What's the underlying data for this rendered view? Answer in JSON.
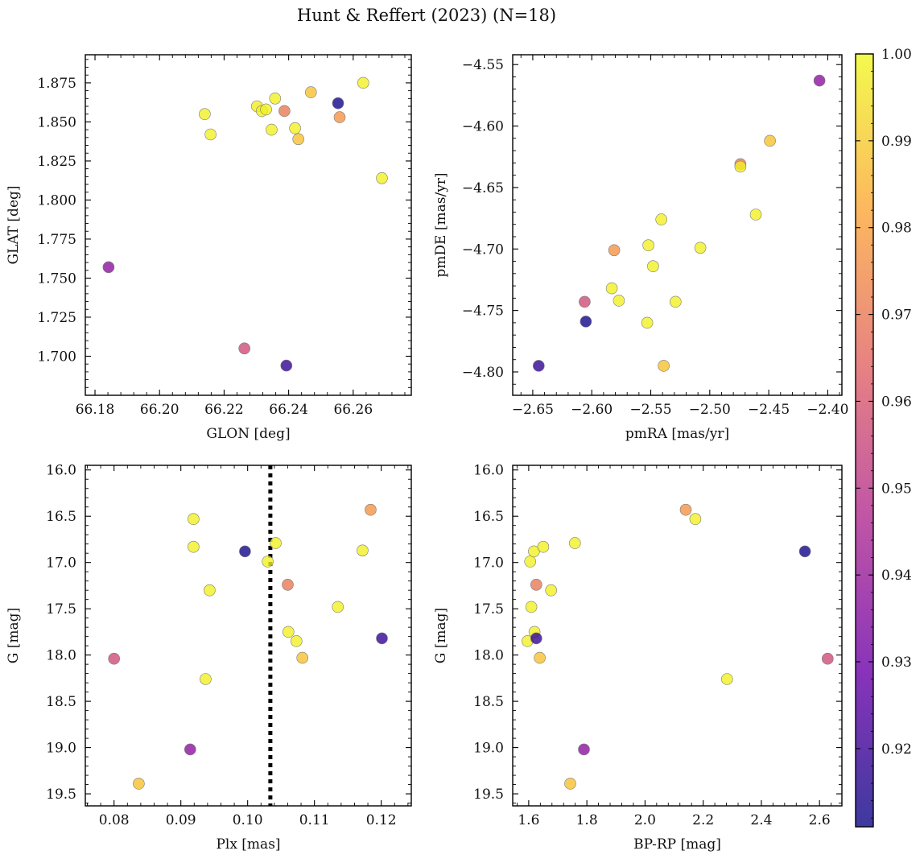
{
  "title": "Hunt & Reffert (2023) (N=18)",
  "colormap": {
    "name": "plasma",
    "stops": [
      "#0d0887",
      "#6a00a8",
      "#b12a90",
      "#e16462",
      "#fca636",
      "#f0f921"
    ],
    "alpha": 0.8,
    "vmin": 0.911,
    "vmax": 1.0,
    "ticks": [
      0.92,
      0.93,
      0.94,
      0.95,
      0.96,
      0.97,
      0.98,
      0.99,
      1.0
    ],
    "tick_labels": [
      "0.92",
      "0.93",
      "0.94",
      "0.95",
      "0.96",
      "0.97",
      "0.98",
      "0.99",
      "1.00"
    ]
  },
  "chart_data": [
    {
      "type": "scatter",
      "id": "lonlat",
      "xlabel": "GLON [deg]",
      "ylabel": "GLAT [deg]",
      "xlim": [
        66.177,
        66.278
      ],
      "ylim": [
        1.675,
        1.893
      ],
      "xticks": [
        66.18,
        66.2,
        66.22,
        66.24,
        66.26
      ],
      "xtick_labels": [
        "66.18",
        "66.20",
        "66.22",
        "66.24",
        "66.26"
      ],
      "yticks": [
        1.7,
        1.725,
        1.75,
        1.775,
        1.8,
        1.825,
        1.85,
        1.875
      ],
      "ytick_labels": [
        "1.700",
        "1.725",
        "1.750",
        "1.775",
        "1.800",
        "1.825",
        "1.850",
        "1.875"
      ],
      "x": [
        66.1842,
        66.214,
        66.2158,
        66.2263,
        66.2302,
        66.2317,
        66.233,
        66.2347,
        66.2358,
        66.2387,
        66.2393,
        66.242,
        66.243,
        66.2469,
        66.2553,
        66.2558,
        66.2631,
        66.2689
      ],
      "y": [
        1.757,
        1.855,
        1.842,
        1.705,
        1.86,
        1.857,
        1.858,
        1.845,
        1.865,
        1.857,
        1.694,
        1.846,
        1.839,
        1.869,
        1.862,
        1.853,
        1.875,
        1.814
      ],
      "c": [
        0.937,
        0.998,
        0.998,
        0.957,
        0.997,
        0.998,
        0.998,
        0.998,
        0.998,
        0.97,
        0.918,
        0.998,
        0.988,
        0.988,
        0.912,
        0.977,
        0.998,
        0.998
      ]
    },
    {
      "type": "scatter",
      "id": "pm",
      "xlabel": "pmRA [mas/yr]",
      "ylabel": "pmDE [mas/yr]",
      "xlim": [
        -2.667,
        -2.388
      ],
      "ylim": [
        -4.819,
        -4.542
      ],
      "xticks": [
        -2.65,
        -2.6,
        -2.55,
        -2.5,
        -2.45,
        -2.4
      ],
      "xtick_labels": [
        "−2.65",
        "−2.60",
        "−2.55",
        "−2.50",
        "−2.45",
        "−2.40"
      ],
      "yticks": [
        -4.8,
        -4.75,
        -4.7,
        -4.65,
        -4.6,
        -4.55
      ],
      "ytick_labels": [
        "−4.80",
        "−4.75",
        "−4.70",
        "−4.65",
        "−4.60",
        "−4.55"
      ],
      "x": [
        -2.645,
        -2.605,
        -2.606,
        -2.583,
        -2.581,
        -2.577,
        -2.553,
        -2.552,
        -2.548,
        -2.541,
        -2.539,
        -2.529,
        -2.508,
        -2.474,
        -2.474,
        -2.461,
        -2.449,
        -2.407
      ],
      "y": [
        -4.795,
        -4.759,
        -4.743,
        -4.732,
        -4.701,
        -4.742,
        -4.76,
        -4.697,
        -4.714,
        -4.676,
        -4.795,
        -4.743,
        -4.699,
        -4.631,
        -4.633,
        -4.672,
        -4.612,
        -4.563
      ],
      "c": [
        0.918,
        0.912,
        0.957,
        0.998,
        0.977,
        0.998,
        0.998,
        0.998,
        0.998,
        0.998,
        0.988,
        0.998,
        0.998,
        0.97,
        0.998,
        0.998,
        0.988,
        0.937
      ]
    },
    {
      "type": "scatter",
      "id": "plxg",
      "xlabel": "Plx [mas]",
      "ylabel": "G [mag]",
      "xlim": [
        0.0757,
        0.1245
      ],
      "ylim": [
        19.63,
        15.95
      ],
      "xticks": [
        0.08,
        0.09,
        0.1,
        0.11,
        0.12
      ],
      "xtick_labels": [
        "0.08",
        "0.09",
        "0.10",
        "0.11",
        "0.12"
      ],
      "yticks": [
        16.0,
        16.5,
        17.0,
        17.5,
        18.0,
        18.5,
        19.0,
        19.5
      ],
      "ytick_labels": [
        "16.0",
        "16.5",
        "17.0",
        "17.5",
        "18.0",
        "18.5",
        "19.0",
        "19.5"
      ],
      "vline": 0.1034,
      "x": [
        0.08,
        0.0837,
        0.0914,
        0.0919,
        0.0919,
        0.0937,
        0.0943,
        0.0996,
        0.103,
        0.1042,
        0.106,
        0.1061,
        0.1073,
        0.1082,
        0.1135,
        0.1172,
        0.1184,
        0.1201
      ],
      "y": [
        18.04,
        19.39,
        19.02,
        16.53,
        16.83,
        18.26,
        17.3,
        16.88,
        16.99,
        16.79,
        17.24,
        17.75,
        17.85,
        18.03,
        17.48,
        16.87,
        16.43,
        17.82
      ],
      "c": [
        0.957,
        0.988,
        0.937,
        0.998,
        0.998,
        0.998,
        0.998,
        0.912,
        0.998,
        0.998,
        0.97,
        0.998,
        0.998,
        0.988,
        0.998,
        0.998,
        0.977,
        0.918
      ]
    },
    {
      "type": "scatter",
      "id": "cmd",
      "xlabel": "BP-RP [mag]",
      "ylabel": "G [mag]",
      "xlim": [
        1.545,
        2.677
      ],
      "ylim": [
        19.63,
        15.95
      ],
      "xticks": [
        1.6,
        1.8,
        2.0,
        2.2,
        2.4,
        2.6
      ],
      "xtick_labels": [
        "1.6",
        "1.8",
        "2.0",
        "2.2",
        "2.4",
        "2.6"
      ],
      "yticks": [
        16.0,
        16.5,
        17.0,
        17.5,
        18.0,
        18.5,
        19.0,
        19.5
      ],
      "ytick_labels": [
        "16.0",
        "16.5",
        "17.0",
        "17.5",
        "18.0",
        "18.5",
        "19.0",
        "19.5"
      ],
      "x": [
        1.596,
        1.605,
        1.609,
        1.618,
        1.62,
        1.626,
        1.626,
        1.638,
        1.65,
        1.677,
        1.743,
        1.759,
        1.79,
        2.14,
        2.173,
        2.282,
        2.55,
        2.628
      ],
      "y": [
        17.85,
        16.99,
        17.48,
        16.88,
        17.75,
        17.82,
        17.24,
        18.03,
        16.83,
        17.3,
        19.39,
        16.79,
        19.02,
        16.43,
        16.53,
        18.26,
        16.88,
        18.04
      ],
      "c": [
        0.998,
        0.998,
        0.998,
        0.998,
        0.998,
        0.918,
        0.97,
        0.988,
        0.998,
        0.998,
        0.988,
        0.998,
        0.937,
        0.977,
        0.998,
        0.998,
        0.912,
        0.957
      ]
    }
  ]
}
